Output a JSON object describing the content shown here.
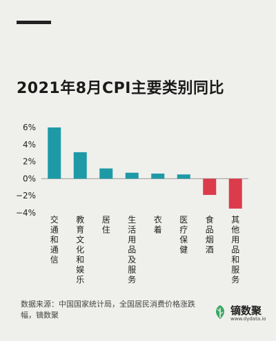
{
  "title": "2021年8月CPI主要类别同比",
  "source": "数据来源：中国国家统计局，全国居民消费价格涨跌幅，镝数聚",
  "brand": {
    "name": "镝数聚",
    "url": "www.dydata.io"
  },
  "colors": {
    "positive": "#1e9aa6",
    "negative": "#dc3b4a",
    "background": "#efefec"
  },
  "chart_data": {
    "type": "bar",
    "title": "2021年8月CPI主要类别同比",
    "xlabel": "",
    "ylabel": "",
    "categories": [
      "交通和通信",
      "教育文化和娱乐",
      "居住",
      "生活用品及服务",
      "衣着",
      "医疗保健",
      "食品烟酒",
      "其他用品和服务"
    ],
    "values": [
      6.0,
      3.1,
      1.2,
      0.7,
      0.6,
      0.5,
      -1.9,
      -3.5
    ],
    "ylim": [
      -4,
      6
    ],
    "yticks": [
      6,
      4,
      2,
      0,
      -2,
      -4
    ],
    "ytick_labels": [
      "6%",
      "4%",
      "2%",
      "0%",
      "−2%",
      "−4%"
    ],
    "grid": false,
    "legend": "none"
  }
}
